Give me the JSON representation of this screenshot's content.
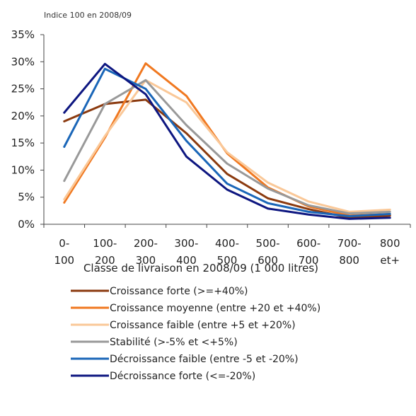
{
  "chart_data": {
    "type": "line",
    "note": "Indice 100 en 2008/09",
    "xlabel": "Classe de livraison en 2008/09 (1 000 litres)",
    "ylabel": "",
    "categories": [
      [
        "0-",
        "100"
      ],
      [
        "100-",
        "200"
      ],
      [
        "200-",
        "300"
      ],
      [
        "300-",
        "400"
      ],
      [
        "400-",
        "500"
      ],
      [
        "500-",
        "600"
      ],
      [
        "600-",
        "700"
      ],
      [
        "700-",
        "800"
      ],
      [
        "800",
        "et+"
      ]
    ],
    "ylim": [
      0,
      35
    ],
    "yticks": [
      "0%",
      "5%",
      "10%",
      "15%",
      "20%",
      "25%",
      "30%",
      "35%"
    ],
    "grid": false,
    "legend_position": "bottom",
    "series": [
      {
        "name": "Croissance forte (>=+40%)",
        "color": "#8B3A0F",
        "values": [
          19.0,
          22.2,
          23.0,
          16.8,
          9.3,
          4.8,
          2.8,
          1.2,
          1.6
        ]
      },
      {
        "name": "Croissance moyenne (entre +20 et +40%)",
        "color": "#F07820",
        "values": [
          4.0,
          16.0,
          29.7,
          23.7,
          13.1,
          6.8,
          3.3,
          1.6,
          1.9
        ]
      },
      {
        "name": "Croissance faible (entre +5 et +20%)",
        "color": "#FAC898",
        "values": [
          4.6,
          16.3,
          26.6,
          22.5,
          13.3,
          7.7,
          4.2,
          2.3,
          2.7
        ]
      },
      {
        "name": "Stabilité (>-5% et <+5%)",
        "color": "#999999",
        "values": [
          8.0,
          22.2,
          26.6,
          18.3,
          11.2,
          6.6,
          3.5,
          2.0,
          2.3
        ]
      },
      {
        "name": "Décroissance faible (entre -5 et -20%)",
        "color": "#1A66B8",
        "values": [
          14.3,
          28.7,
          25.0,
          15.4,
          7.5,
          3.9,
          2.3,
          1.5,
          1.9
        ]
      },
      {
        "name": "Décroissance forte (<=-20%)",
        "color": "#0D1680",
        "values": [
          20.6,
          29.6,
          24.0,
          12.5,
          6.4,
          2.9,
          1.8,
          1.0,
          1.2
        ]
      }
    ]
  }
}
